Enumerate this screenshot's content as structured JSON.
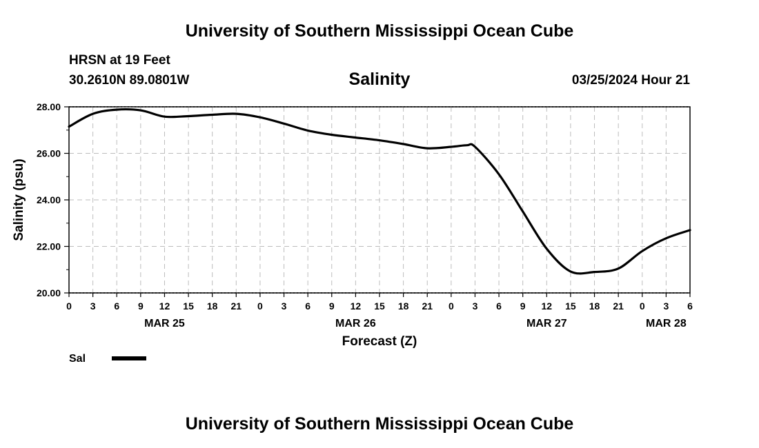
{
  "header": {
    "title": "University of Southern Mississippi Ocean Cube",
    "station": "HRSN at 19 Feet",
    "coords": "30.2610N  89.0801W",
    "datetime": "03/25/2024 Hour 21"
  },
  "footer": {
    "title": "University of Southern Mississippi Ocean Cube"
  },
  "chart_data": {
    "type": "line",
    "title": "Salinity",
    "xlabel": "Forecast (Z)",
    "ylabel": "Salinity (psu)",
    "ylim": [
      20,
      28
    ],
    "y_ticks": [
      "20.00",
      "22.00",
      "24.00",
      "26.00",
      "28.00"
    ],
    "x_hours_range": [
      0,
      78
    ],
    "x_tick_labels": [
      "0",
      "3",
      "6",
      "9",
      "12",
      "15",
      "18",
      "21",
      "0",
      "3",
      "6",
      "9",
      "12",
      "15",
      "18",
      "21",
      "0",
      "3",
      "6",
      "9",
      "12",
      "15",
      "18",
      "21",
      "0",
      "3",
      "6"
    ],
    "date_labels": [
      {
        "label": "MAR 25",
        "hour": 12
      },
      {
        "label": "MAR 26",
        "hour": 36
      },
      {
        "label": "MAR 27",
        "hour": 60
      },
      {
        "label": "MAR 28",
        "hour": 75
      }
    ],
    "grid": true,
    "series": [
      {
        "name": "Sal",
        "x": [
          0,
          3,
          6,
          9,
          12,
          15,
          18,
          21,
          24,
          27,
          30,
          33,
          36,
          39,
          42,
          45,
          48,
          50,
          51,
          54,
          57,
          60,
          63,
          66,
          69,
          72,
          75,
          78
        ],
        "y": [
          27.15,
          27.7,
          27.88,
          27.85,
          27.58,
          27.6,
          27.66,
          27.7,
          27.55,
          27.28,
          26.98,
          26.8,
          26.68,
          26.56,
          26.4,
          26.22,
          26.28,
          26.35,
          26.28,
          25.1,
          23.5,
          21.9,
          20.92,
          20.9,
          21.05,
          21.8,
          22.35,
          22.7
        ]
      }
    ],
    "legend": {
      "label": "Sal",
      "position": "bottom-left"
    }
  }
}
